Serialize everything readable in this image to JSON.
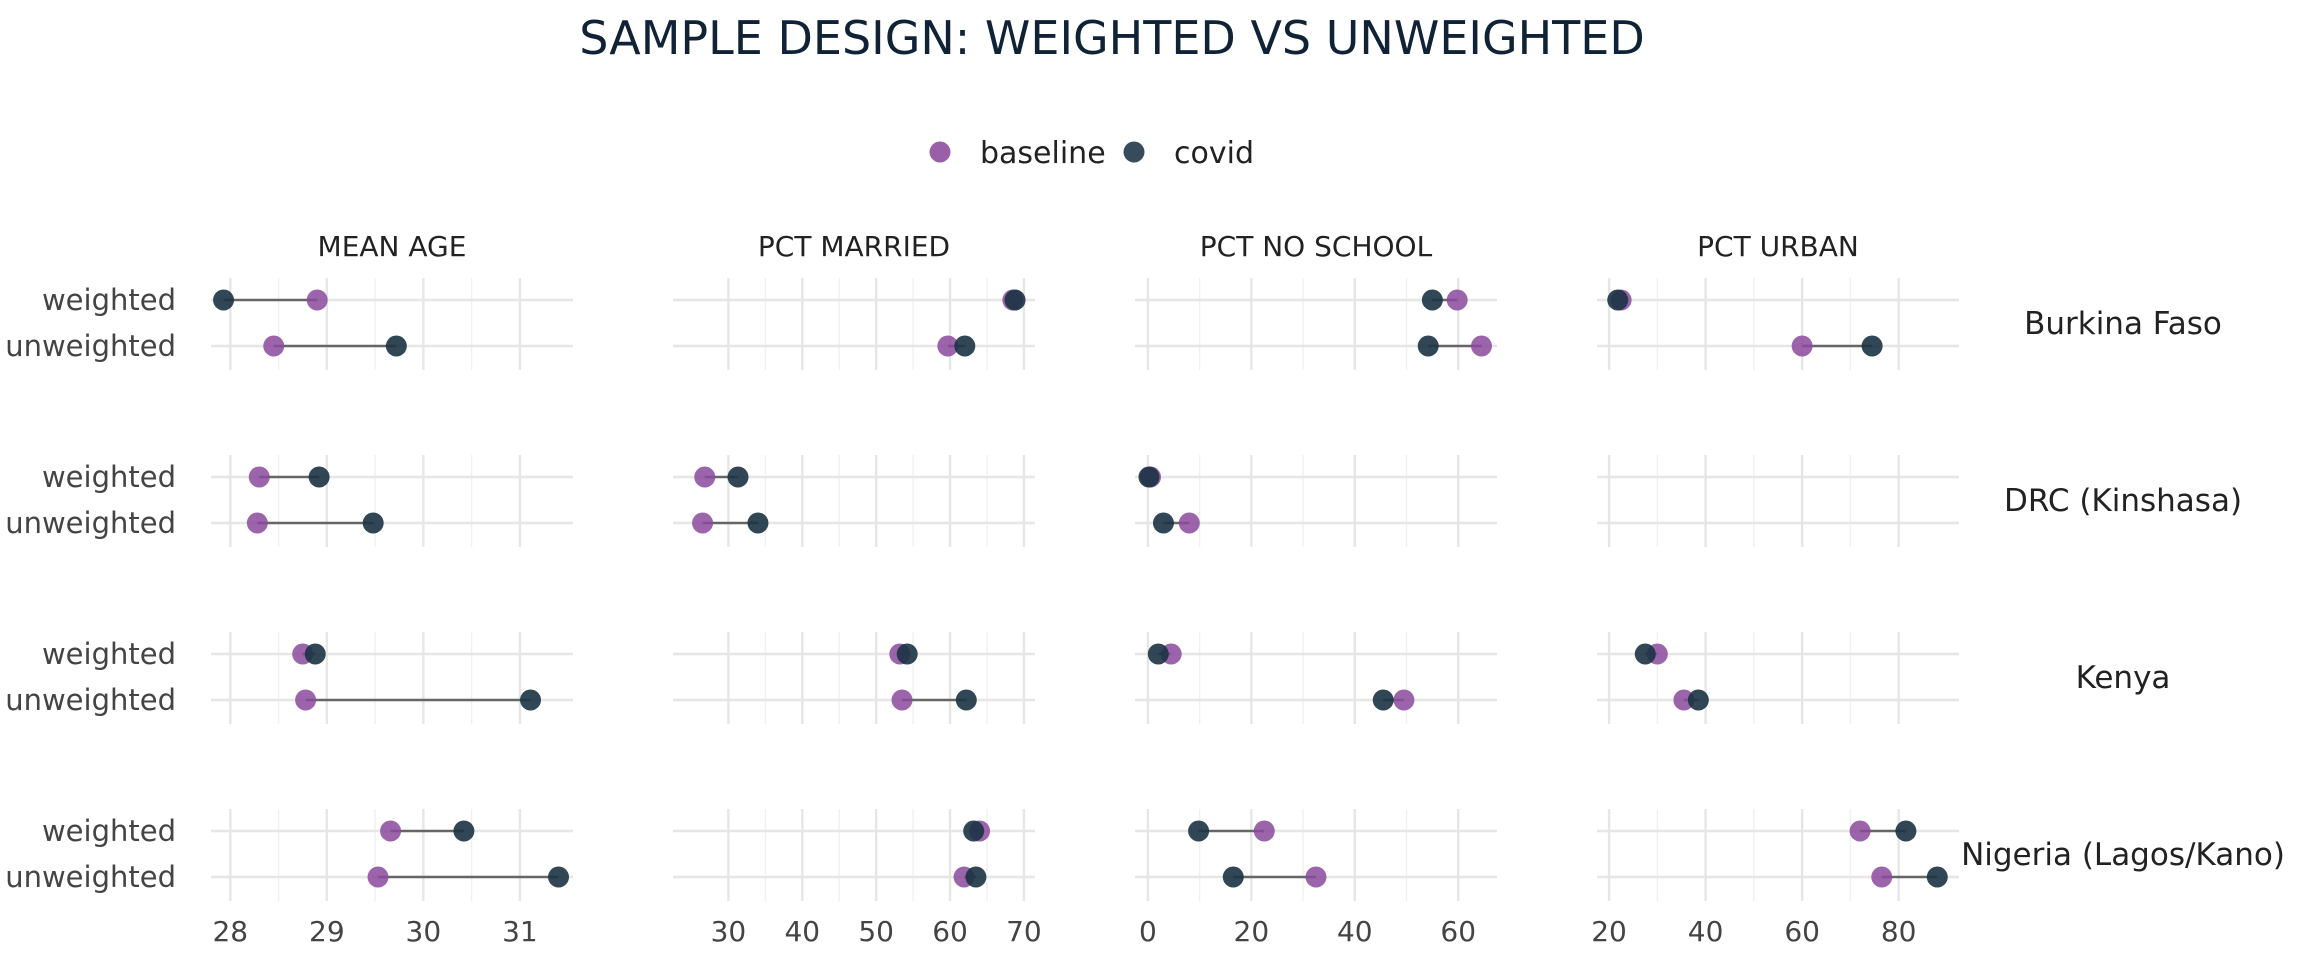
{
  "chart_data": {
    "type": "dumbbell",
    "title": "SAMPLE DESIGN: WEIGHTED VS UNWEIGHTED",
    "legend": {
      "position": "top",
      "entries": [
        {
          "name": "baseline",
          "color": "#8b4a9c"
        },
        {
          "name": "covid",
          "color": "#1b3344"
        }
      ]
    },
    "grid": true,
    "panels": [
      {
        "name": "MEAN AGE",
        "xlim": [
          27.8,
          31.55
        ],
        "ticks": [
          28,
          29,
          30,
          31
        ],
        "tick_labels": [
          "28",
          "29",
          "30",
          "31"
        ]
      },
      {
        "name": "PCT MARRIED",
        "xlim": [
          22.5,
          71.5
        ],
        "ticks": [
          30,
          40,
          50,
          60,
          70
        ],
        "tick_labels": [
          "30",
          "40",
          "50",
          "60",
          "70"
        ]
      },
      {
        "name": "PCT NO SCHOOL",
        "xlim": [
          -2.5,
          67.5
        ],
        "ticks": [
          0,
          20,
          40,
          60
        ],
        "tick_labels": [
          "0",
          "20",
          "40",
          "60"
        ]
      },
      {
        "name": "PCT URBAN",
        "xlim": [
          17.5,
          92.5
        ],
        "ticks": [
          20,
          40,
          60,
          80
        ],
        "tick_labels": [
          "20",
          "40",
          "60",
          "80"
        ]
      }
    ],
    "row_categories": [
      "weighted",
      "unweighted"
    ],
    "countries": [
      {
        "name": "Burkina Faso",
        "panels": [
          {
            "weighted": {
              "baseline": 28.9,
              "covid": 27.93
            },
            "unweighted": {
              "baseline": 28.45,
              "covid": 29.72
            }
          },
          {
            "weighted": {
              "baseline": 68.5,
              "covid": 68.8
            },
            "unweighted": {
              "baseline": 59.7,
              "covid": 62.0
            }
          },
          {
            "weighted": {
              "baseline": 59.8,
              "covid": 55.0
            },
            "unweighted": {
              "baseline": 64.5,
              "covid": 54.2
            }
          },
          {
            "weighted": {
              "baseline": 22.5,
              "covid": 21.8
            },
            "unweighted": {
              "baseline": 60.0,
              "covid": 74.5
            }
          }
        ]
      },
      {
        "name": "DRC (Kinshasa)",
        "panels": [
          {
            "weighted": {
              "baseline": 28.3,
              "covid": 28.92
            },
            "unweighted": {
              "baseline": 28.28,
              "covid": 29.48
            }
          },
          {
            "weighted": {
              "baseline": 26.8,
              "covid": 31.3
            },
            "unweighted": {
              "baseline": 26.5,
              "covid": 34.0
            }
          },
          {
            "weighted": {
              "baseline": 0.5,
              "covid": 0.2
            },
            "unweighted": {
              "baseline": 8.0,
              "covid": 3.0
            }
          },
          {
            "weighted": null,
            "unweighted": null
          }
        ]
      },
      {
        "name": "Kenya",
        "panels": [
          {
            "weighted": {
              "baseline": 28.75,
              "covid": 28.88
            },
            "unweighted": {
              "baseline": 28.78,
              "covid": 31.11
            }
          },
          {
            "weighted": {
              "baseline": 53.2,
              "covid": 54.2
            },
            "unweighted": {
              "baseline": 53.5,
              "covid": 62.2
            }
          },
          {
            "weighted": {
              "baseline": 4.5,
              "covid": 2.0
            },
            "unweighted": {
              "baseline": 49.5,
              "covid": 45.5
            }
          },
          {
            "weighted": {
              "baseline": 30.0,
              "covid": 27.5
            },
            "unweighted": {
              "baseline": 35.5,
              "covid": 38.5
            }
          }
        ]
      },
      {
        "name": "Nigeria (Lagos/Kano)",
        "panels": [
          {
            "weighted": {
              "baseline": 29.66,
              "covid": 30.42
            },
            "unweighted": {
              "baseline": 29.53,
              "covid": 31.4
            }
          },
          {
            "weighted": {
              "baseline": 64.0,
              "covid": 63.2
            },
            "unweighted": {
              "baseline": 61.9,
              "covid": 63.5
            }
          },
          {
            "weighted": {
              "baseline": 22.5,
              "covid": 9.8
            },
            "unweighted": {
              "baseline": 32.5,
              "covid": 16.5
            }
          },
          {
            "weighted": {
              "baseline": 72.0,
              "covid": 81.5
            },
            "unweighted": {
              "baseline": 76.5,
              "covid": 88.0
            }
          }
        ]
      }
    ]
  }
}
